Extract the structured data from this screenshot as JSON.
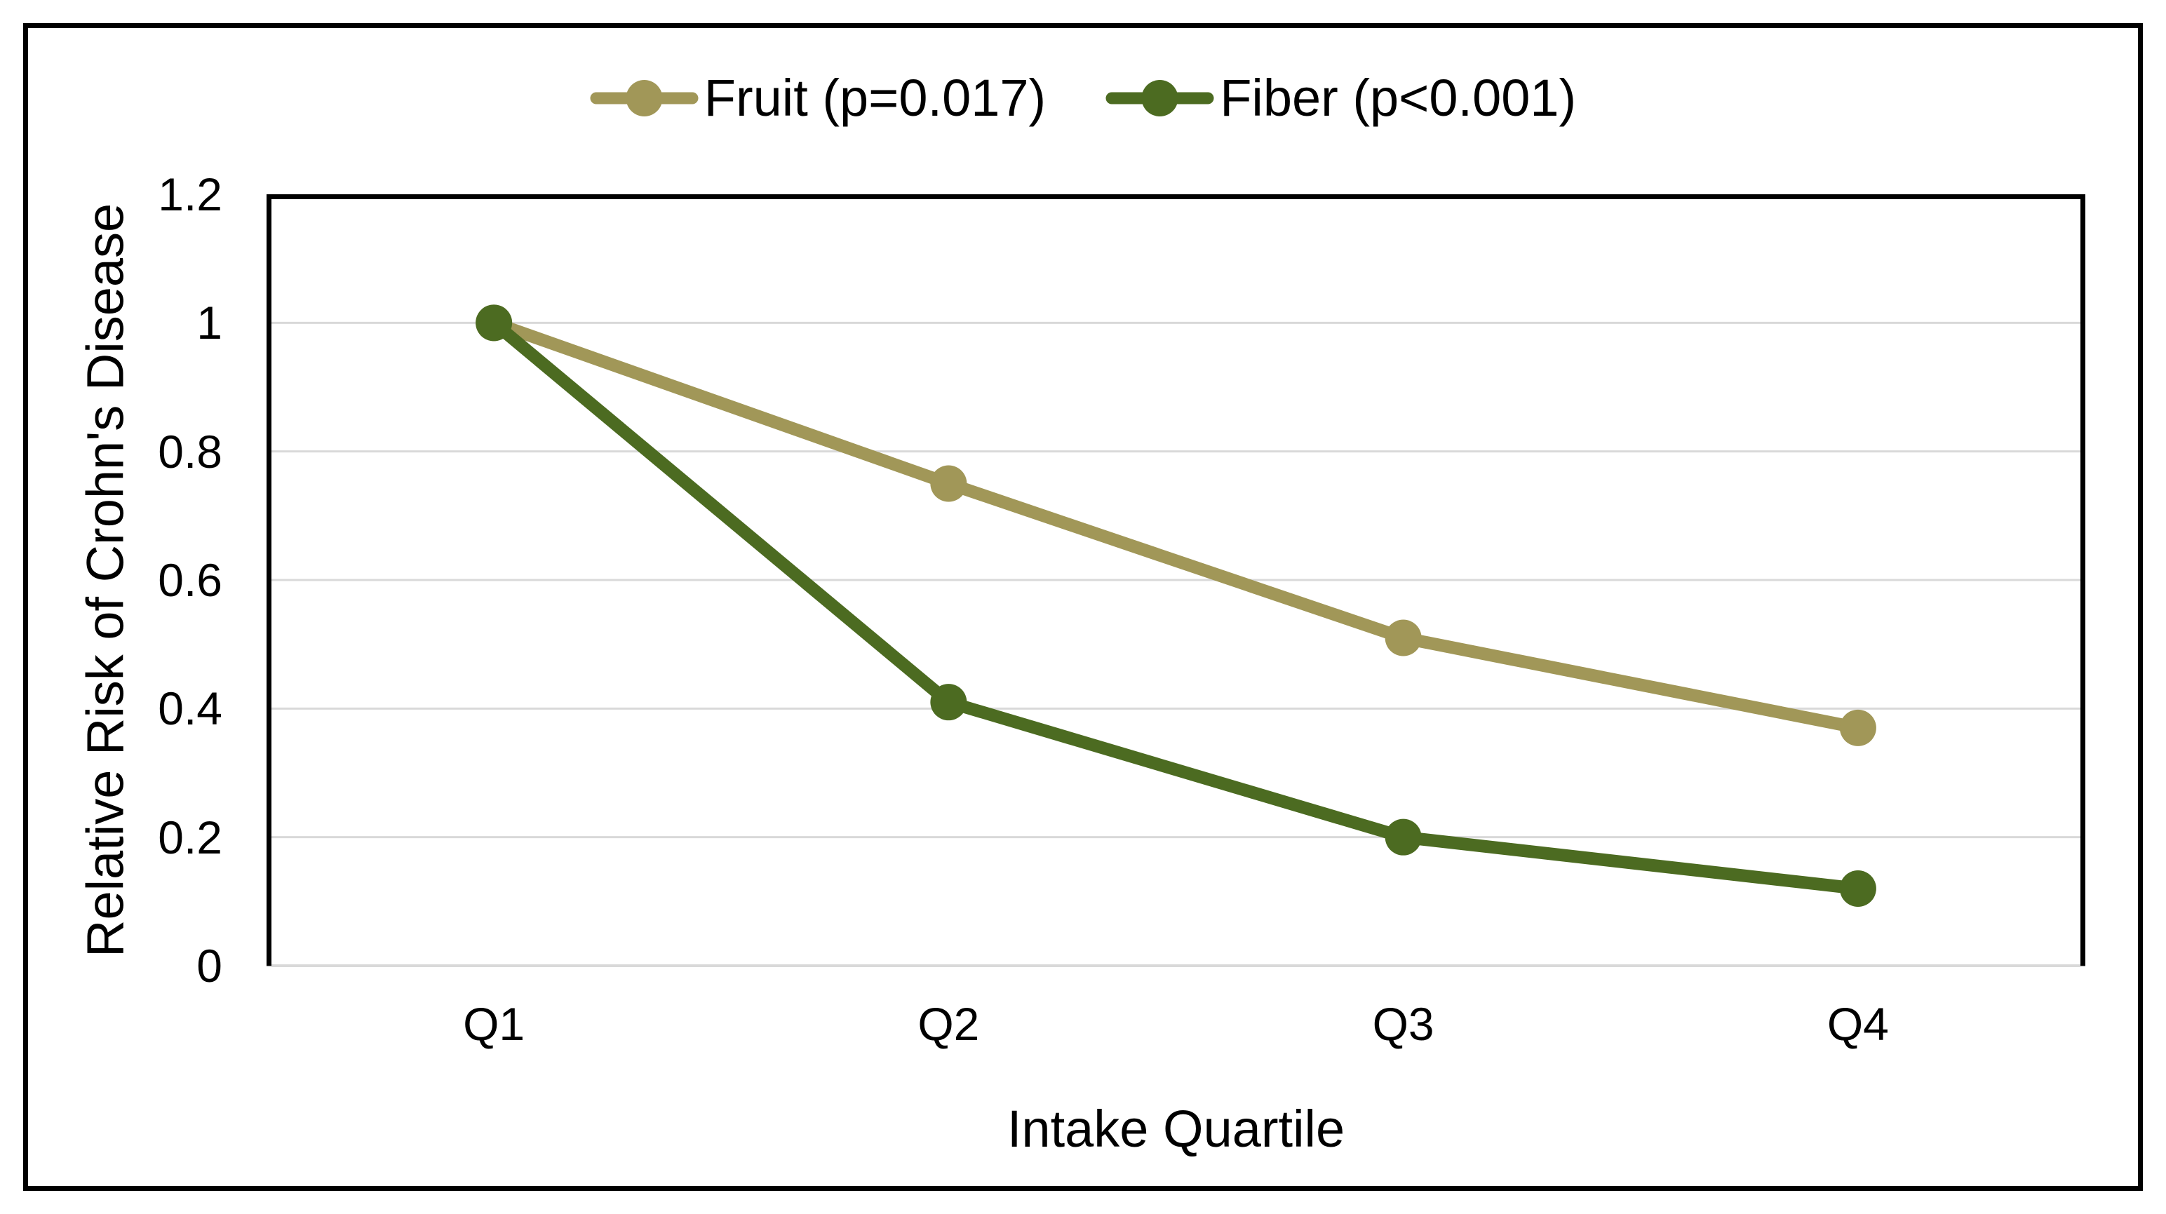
{
  "figure": {
    "background_color": "#FFFFFF",
    "border_color": "#000000"
  },
  "chart_data": {
    "type": "line",
    "title": "",
    "categories": [
      "Q1",
      "Q2",
      "Q3",
      "Q4"
    ],
    "series": [
      {
        "name": "Fruit (p=0.017)",
        "color": "#A19758",
        "values": [
          1.0,
          0.75,
          0.51,
          0.37
        ]
      },
      {
        "name": "Fiber (p<0.001)",
        "color": "#4C6B21",
        "values": [
          1.0,
          0.41,
          0.2,
          0.12
        ]
      }
    ],
    "xlabel": "Intake Quartile",
    "ylabel": "Relative Risk of Crohn's Disease",
    "ylim": [
      0,
      1.2
    ],
    "yticks": [
      0,
      0.2,
      0.4,
      0.6,
      0.8,
      1,
      1.2
    ],
    "ytick_labels": [
      "0",
      "0.2",
      "0.4",
      "0.6",
      "0.8",
      "1",
      "1.2"
    ],
    "grid": true,
    "gridline_color": "#D9D9D9",
    "axis_color": "#000000",
    "legend_position": "top",
    "marker": "circle"
  }
}
